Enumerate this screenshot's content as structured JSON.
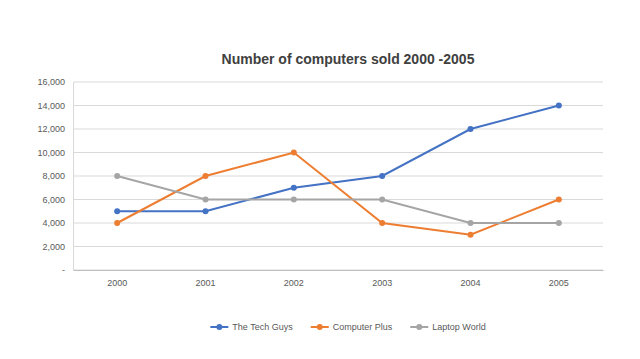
{
  "chart_data": {
    "type": "line",
    "title": "Number of computers sold 2000 -2005",
    "categories": [
      "2000",
      "2001",
      "2002",
      "2003",
      "2004",
      "2005"
    ],
    "series": [
      {
        "name": "The Tech Guys",
        "color": "#4472c4",
        "values": [
          5000,
          5000,
          7000,
          8000,
          12000,
          14000
        ]
      },
      {
        "name": "Computer Plus",
        "color": "#ed7d31",
        "values": [
          4000,
          8000,
          10000,
          4000,
          3000,
          6000
        ]
      },
      {
        "name": "Laptop World",
        "color": "#a5a5a5",
        "values": [
          8000,
          6000,
          6000,
          6000,
          4000,
          4000
        ]
      }
    ],
    "ylim": [
      0,
      16000
    ],
    "yticks": [
      {
        "value": 0,
        "label": "-"
      },
      {
        "value": 2000,
        "label": "2,000"
      },
      {
        "value": 4000,
        "label": "4,000"
      },
      {
        "value": 6000,
        "label": "6,000"
      },
      {
        "value": 8000,
        "label": "8,000"
      },
      {
        "value": 10000,
        "label": "10,000"
      },
      {
        "value": 12000,
        "label": "12,000"
      },
      {
        "value": 14000,
        "label": "14,000"
      },
      {
        "value": 16000,
        "label": "16,000"
      }
    ],
    "grid": true,
    "legend": "bottom",
    "marker": "circle"
  }
}
